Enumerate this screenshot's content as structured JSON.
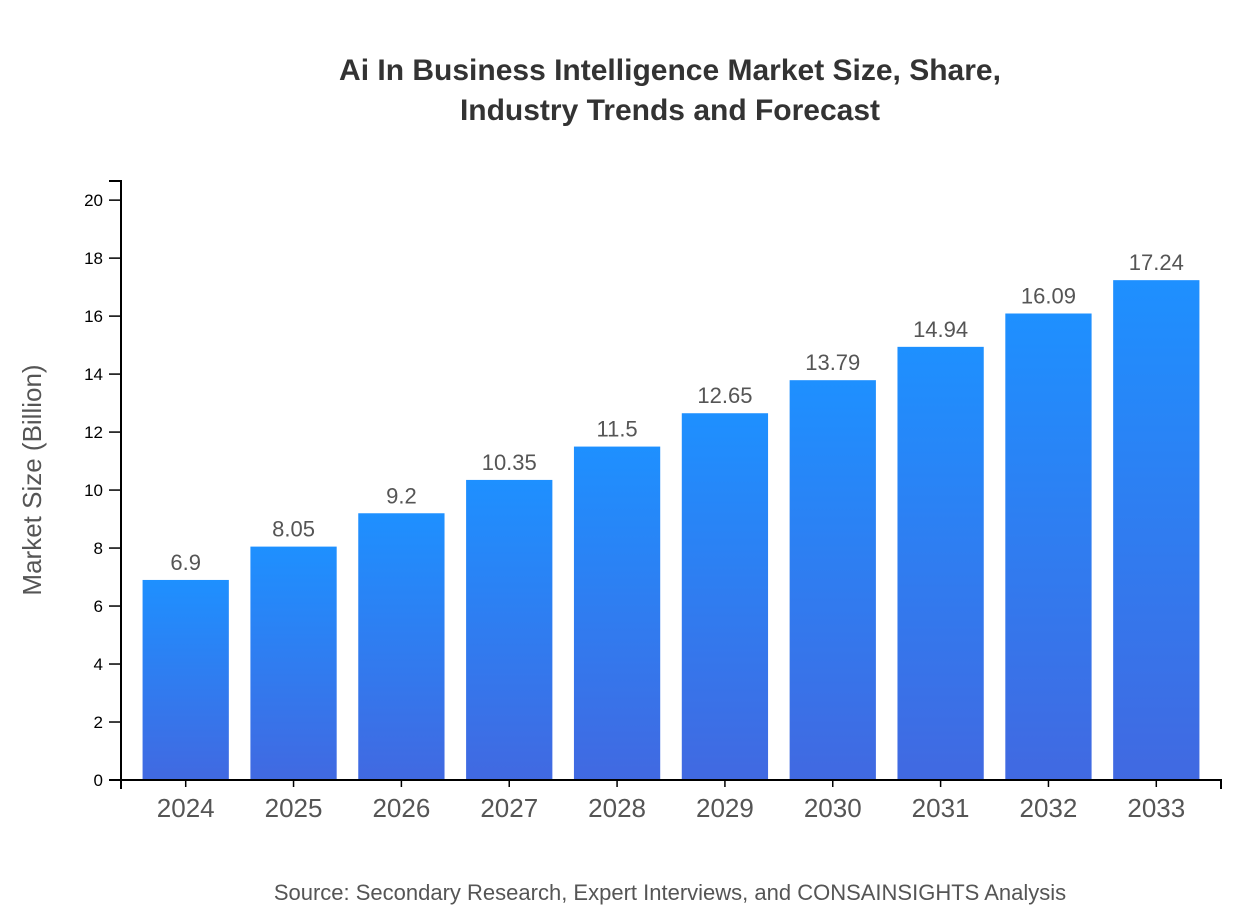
{
  "chart_data": {
    "type": "bar",
    "title": [
      "Ai In Business Intelligence Market Size, Share,",
      "Industry Trends and Forecast"
    ],
    "xlabel": "",
    "ylabel": "Market Size (Billion)",
    "categories": [
      "2024",
      "2025",
      "2026",
      "2027",
      "2028",
      "2029",
      "2030",
      "2031",
      "2032",
      "2033"
    ],
    "values": [
      6.9,
      8.05,
      9.2,
      10.35,
      11.5,
      12.65,
      13.79,
      14.94,
      16.09,
      17.24
    ],
    "ylim": [
      0,
      20.66
    ],
    "yticks": [
      0,
      2,
      4,
      6,
      8,
      10,
      12,
      14,
      16,
      18,
      20
    ],
    "grid": false,
    "colors": {
      "bar_top": "#1E90FF",
      "bar_bottom": "#4169E1"
    },
    "source": "Source: Secondary Research, Expert Interviews, and CONSAINSIGHTS Analysis"
  }
}
